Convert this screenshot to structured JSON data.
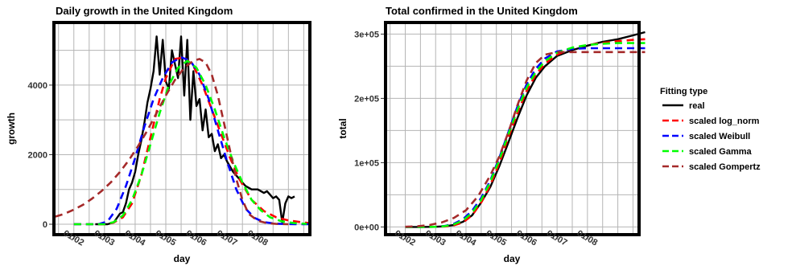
{
  "chart_data": [
    {
      "type": "line",
      "title": "Daily growth in the United Kingdom",
      "xlabel": "day",
      "ylabel": "growth",
      "x_tick_labels": [
        "01/02",
        "01/03",
        "01/04",
        "01/05",
        "01/06",
        "01/07",
        "01/08"
      ],
      "y_ticks": [
        0,
        2000,
        4000
      ],
      "y_tick_labels": [
        "0",
        "2000",
        "4000"
      ],
      "ylim": [
        -300,
        5800
      ],
      "xlim": [
        -0.65,
        7.7
      ],
      "grid": true,
      "series": [
        {
          "name": "real",
          "color": "#000000",
          "dashed": false,
          "x": [
            0.7,
            0.9,
            1.1,
            1.3,
            1.5,
            1.6,
            1.7,
            1.8,
            1.9,
            2.0,
            2.1,
            2.2,
            2.3,
            2.4,
            2.5,
            2.6,
            2.7,
            2.8,
            2.9,
            3.0,
            3.1,
            3.2,
            3.3,
            3.4,
            3.5,
            3.6,
            3.7,
            3.8,
            3.9,
            4.0,
            4.1,
            4.2,
            4.3,
            4.4,
            4.5,
            4.6,
            4.7,
            4.8,
            4.9,
            5.0,
            5.2,
            5.4,
            5.6,
            5.8,
            6.0,
            6.2,
            6.3,
            6.4,
            6.5,
            6.6,
            6.7,
            6.8,
            6.9,
            7.0,
            7.1,
            7.2
          ],
          "y": [
            0,
            0,
            0,
            50,
            300,
            350,
            600,
            1000,
            1200,
            1500,
            2000,
            2400,
            2900,
            3500,
            3900,
            4400,
            5400,
            4300,
            5300,
            4100,
            3900,
            5000,
            4600,
            4200,
            5400,
            3700,
            5300,
            3000,
            4400,
            3400,
            3600,
            2700,
            3300,
            2500,
            2600,
            2100,
            2300,
            1900,
            2000,
            1800,
            1500,
            1300,
            1100,
            1000,
            1000,
            900,
            950,
            850,
            750,
            800,
            700,
            50,
            600,
            800,
            750,
            800
          ]
        },
        {
          "name": "scaled log_norm",
          "color": "#ff0000",
          "dashed": true,
          "x": [
            0.0,
            0.5,
            1.0,
            1.3,
            1.6,
            1.9,
            2.2,
            2.5,
            2.8,
            3.0,
            3.3,
            3.6,
            3.9,
            4.2,
            4.5,
            4.8,
            5.1,
            5.4,
            5.8,
            6.2,
            6.6,
            7.0,
            7.4,
            7.7
          ],
          "y": [
            0,
            0,
            0,
            50,
            200,
            600,
            1400,
            2500,
            3600,
            4200,
            4750,
            4800,
            4550,
            4000,
            3300,
            2600,
            1900,
            1300,
            700,
            380,
            200,
            110,
            60,
            30
          ]
        },
        {
          "name": "scaled Weibull",
          "color": "#0000ff",
          "dashed": true,
          "x": [
            0.0,
            0.4,
            0.8,
            1.1,
            1.4,
            1.7,
            2.0,
            2.3,
            2.6,
            2.9,
            3.2,
            3.5,
            3.8,
            4.1,
            4.4,
            4.7,
            5.0,
            5.3,
            5.6,
            5.9,
            6.2,
            6.6,
            7.0,
            7.4,
            7.7
          ],
          "y": [
            0,
            0,
            0,
            80,
            450,
            1100,
            1900,
            2800,
            3600,
            4200,
            4650,
            4800,
            4700,
            4300,
            3600,
            2700,
            1800,
            1000,
            450,
            180,
            60,
            15,
            5,
            0,
            0
          ]
        },
        {
          "name": "scaled Gamma",
          "color": "#00ff00",
          "dashed": true,
          "x": [
            0.0,
            0.5,
            1.0,
            1.3,
            1.6,
            1.9,
            2.2,
            2.5,
            2.8,
            3.1,
            3.4,
            3.7,
            4.0,
            4.3,
            4.6,
            4.9,
            5.2,
            5.5,
            5.8,
            6.1,
            6.4,
            6.8,
            7.2,
            7.6
          ],
          "y": [
            0,
            0,
            0,
            60,
            250,
            700,
            1400,
            2300,
            3200,
            4000,
            4500,
            4700,
            4500,
            4000,
            3300,
            2500,
            1800,
            1200,
            700,
            400,
            200,
            80,
            30,
            10
          ]
        },
        {
          "name": "scaled Gompertz",
          "color": "#a52a2a",
          "dashed": true,
          "x": [
            -0.6,
            -0.3,
            0.0,
            0.3,
            0.6,
            0.9,
            1.2,
            1.5,
            1.8,
            2.1,
            2.4,
            2.7,
            3.0,
            3.3,
            3.6,
            3.9,
            4.1,
            4.3,
            4.5,
            4.7,
            4.9,
            5.1,
            5.3,
            5.5,
            5.7,
            6.0,
            6.3,
            6.6,
            7.0
          ],
          "y": [
            220,
            300,
            420,
            560,
            740,
            950,
            1200,
            1500,
            1850,
            2250,
            2700,
            3200,
            3700,
            4150,
            4500,
            4700,
            4750,
            4650,
            4300,
            3700,
            2900,
            2100,
            1300,
            700,
            300,
            100,
            30,
            10,
            0
          ]
        }
      ]
    },
    {
      "type": "line",
      "title": "Total confirmed in the United Kingdom",
      "xlabel": "day",
      "ylabel": "total",
      "x_tick_labels": [
        "01/02",
        "01/03",
        "01/04",
        "01/05",
        "01/06",
        "01/07",
        "01/08"
      ],
      "y_ticks": [
        0,
        100000,
        200000,
        300000
      ],
      "y_tick_labels": [
        "0e+00",
        "1e+05",
        "2e+05",
        "3e+05"
      ],
      "ylim": [
        -12000,
        318000
      ],
      "xlim": [
        -0.65,
        7.7
      ],
      "grid": true,
      "series": [
        {
          "name": "real",
          "color": "#000000",
          "dashed": false,
          "x": [
            0.0,
            0.5,
            1.0,
            1.3,
            1.6,
            1.9,
            2.2,
            2.5,
            2.8,
            3.1,
            3.4,
            3.7,
            4.0,
            4.3,
            4.6,
            5.0,
            5.5,
            6.0,
            6.5,
            7.0,
            7.5,
            7.9
          ],
          "y": [
            0,
            0,
            200,
            1000,
            3000,
            8000,
            18000,
            38000,
            62000,
            95000,
            132000,
            170000,
            205000,
            232000,
            250000,
            266000,
            275000,
            282000,
            288000,
            292000,
            298000,
            303000
          ]
        },
        {
          "name": "scaled log_norm",
          "color": "#ff0000",
          "dashed": true,
          "x": [
            0.0,
            0.5,
            1.0,
            1.3,
            1.6,
            1.9,
            2.2,
            2.5,
            2.8,
            3.1,
            3.4,
            3.7,
            4.0,
            4.3,
            4.6,
            5.0,
            5.5,
            6.0,
            6.5,
            7.0,
            7.5,
            7.9
          ],
          "y": [
            0,
            0,
            200,
            800,
            2500,
            7000,
            18000,
            38000,
            65000,
            100000,
            140000,
            178000,
            212000,
            237000,
            254000,
            268000,
            278000,
            283000,
            286000,
            289000,
            291000,
            292000
          ]
        },
        {
          "name": "scaled Weibull",
          "color": "#0000ff",
          "dashed": true,
          "x": [
            0.0,
            0.5,
            1.0,
            1.3,
            1.6,
            1.9,
            2.2,
            2.5,
            2.8,
            3.1,
            3.4,
            3.7,
            4.0,
            4.3,
            4.6,
            5.0,
            5.5,
            6.0,
            6.5,
            7.0,
            7.5,
            7.9
          ],
          "y": [
            0,
            0,
            300,
            1500,
            5000,
            12000,
            25000,
            45000,
            72000,
            108000,
            148000,
            188000,
            222000,
            246000,
            262000,
            273000,
            277000,
            278000,
            278000,
            278000,
            278000,
            278000
          ]
        },
        {
          "name": "scaled Gamma",
          "color": "#00ff00",
          "dashed": true,
          "x": [
            0.0,
            0.5,
            1.0,
            1.3,
            1.6,
            1.9,
            2.2,
            2.5,
            2.8,
            3.1,
            3.4,
            3.7,
            4.0,
            4.3,
            4.6,
            5.0,
            5.5,
            6.0,
            6.5,
            7.0,
            7.5,
            7.9
          ],
          "y": [
            0,
            0,
            250,
            1200,
            4000,
            10000,
            22000,
            42000,
            70000,
            105000,
            145000,
            183000,
            217000,
            241000,
            258000,
            271000,
            279000,
            283000,
            285000,
            286000,
            286000,
            286000
          ]
        },
        {
          "name": "scaled Gompertz",
          "color": "#a52a2a",
          "dashed": true,
          "x": [
            0.0,
            0.4,
            0.8,
            1.2,
            1.6,
            2.0,
            2.4,
            2.8,
            3.1,
            3.4,
            3.7,
            4.0,
            4.3,
            4.6,
            5.0,
            5.5,
            6.0,
            6.5,
            7.0,
            7.5,
            7.9
          ],
          "y": [
            200,
            1000,
            3000,
            7000,
            14000,
            26000,
            48000,
            80000,
            110000,
            148000,
            190000,
            228000,
            255000,
            268000,
            272000,
            272000,
            272000,
            272000,
            272000,
            272000,
            272000
          ]
        }
      ]
    }
  ],
  "legend": {
    "title": "Fitting type",
    "items": [
      {
        "label": "real",
        "color": "#000000",
        "dashed": false
      },
      {
        "label": "scaled log_norm",
        "color": "#ff0000",
        "dashed": true
      },
      {
        "label": "scaled Weibull",
        "color": "#0000ff",
        "dashed": true
      },
      {
        "label": "scaled Gamma",
        "color": "#00ff00",
        "dashed": true
      },
      {
        "label": "scaled Gompertz",
        "color": "#a52a2a",
        "dashed": true
      }
    ]
  }
}
